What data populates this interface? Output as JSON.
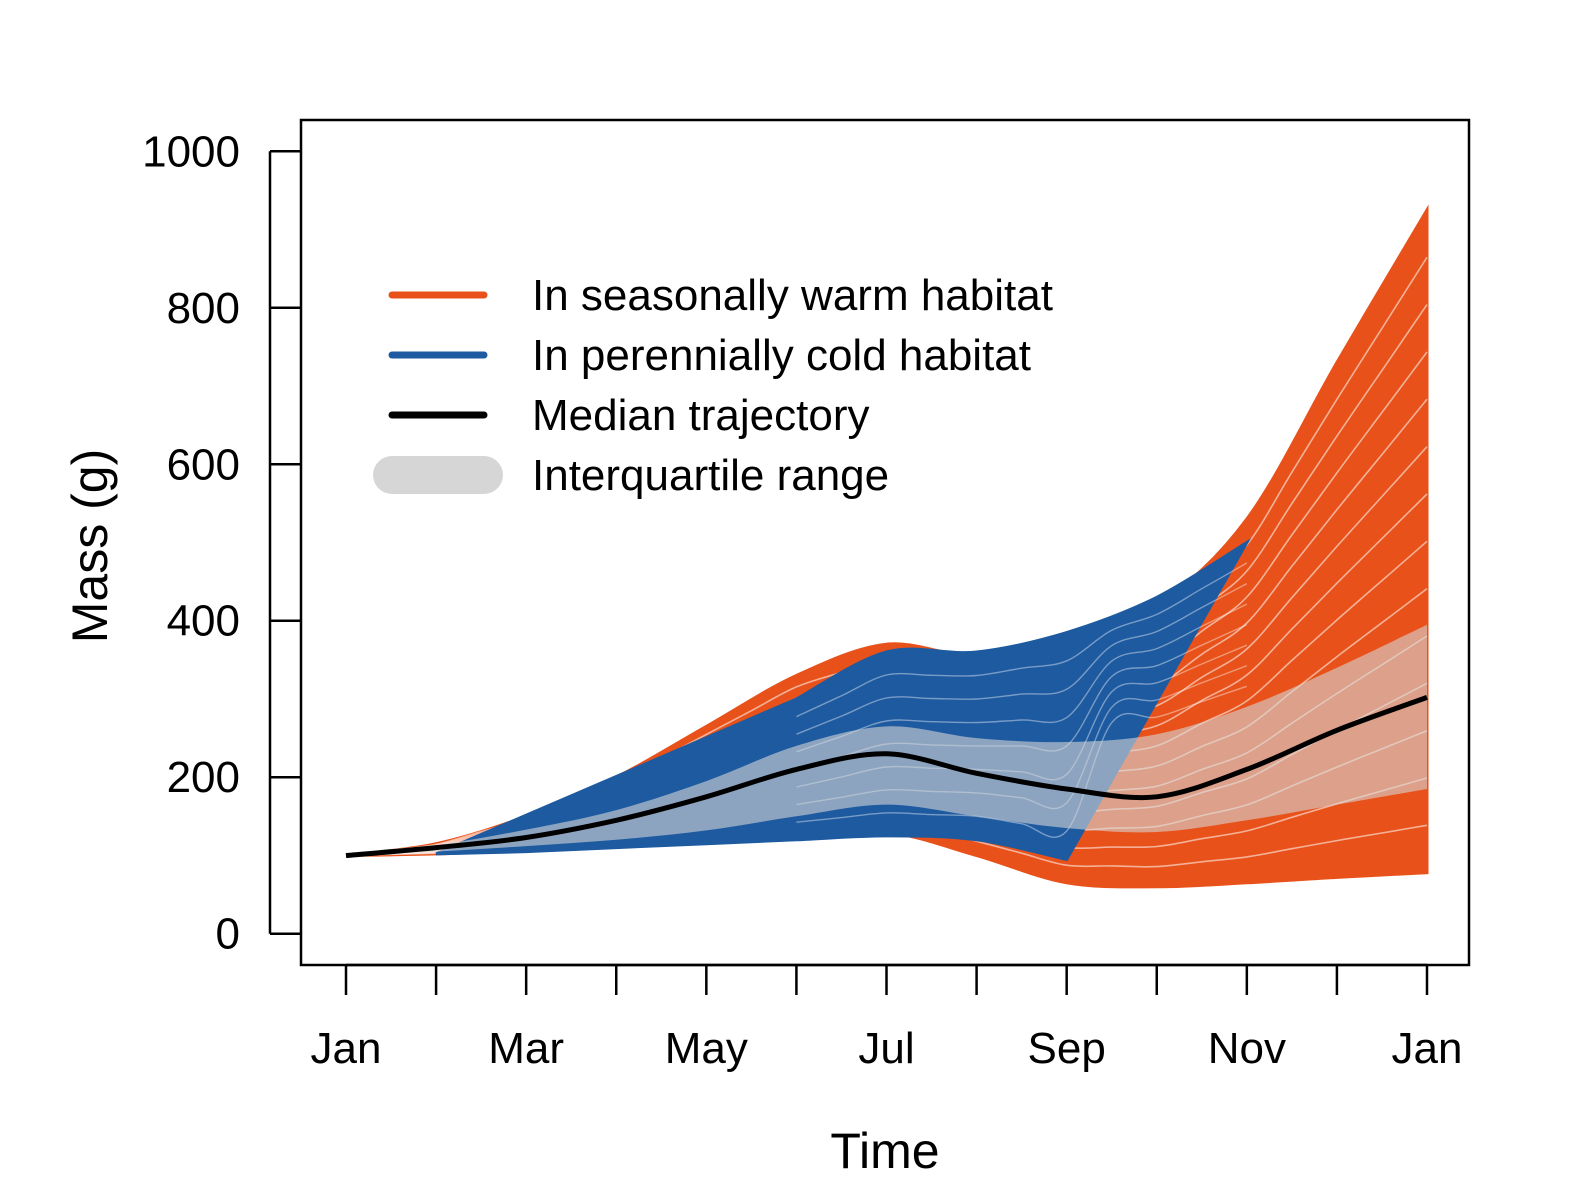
{
  "chart_data": {
    "type": "line",
    "xlabel": "Time",
    "ylabel": "Mass (g)",
    "x_ticks": [
      "Jan",
      "",
      "Mar",
      "",
      "May",
      "",
      "Jul",
      "",
      "Sep",
      "",
      "Nov",
      "",
      "Jan"
    ],
    "y_ticks": [
      0,
      200,
      400,
      600,
      800,
      1000
    ],
    "ylim": [
      -40,
      1040
    ],
    "grid": false,
    "legend_position": "top-left",
    "colors": {
      "warm": "#e8521a",
      "cold": "#1e5aa0",
      "median": "#000000",
      "iqr": "#d6d6d6"
    },
    "legend": [
      {
        "label": "In seasonally warm habitat",
        "style": "warm"
      },
      {
        "label": "In perennially cold habitat",
        "style": "cold"
      },
      {
        "label": "Median trajectory",
        "style": "median"
      },
      {
        "label": "Interquartile range",
        "style": "iqr"
      }
    ],
    "x": [
      0,
      1,
      2,
      3,
      4,
      5,
      6,
      7,
      8,
      9,
      10,
      11,
      12
    ],
    "series": [
      {
        "role": "warm_upper_envelope",
        "values": [
          100,
          115,
          150,
          200,
          265,
          330,
          370,
          355,
          380,
          420,
          530,
          730,
          925
        ]
      },
      {
        "role": "warm_lower_envelope",
        "values": [
          100,
          102,
          107,
          113,
          120,
          127,
          130,
          100,
          65,
          60,
          65,
          72,
          78
        ]
      },
      {
        "role": "cold_upper_envelope",
        "values": [
          null,
          null,
          null,
          null,
          null,
          300,
          360,
          360,
          385,
          430,
          500,
          null,
          null
        ]
      },
      {
        "role": "cold_lower_envelope",
        "values": [
          null,
          102,
          105,
          110,
          115,
          120,
          125,
          120,
          95,
          null,
          null,
          null,
          null
        ]
      },
      {
        "role": "median",
        "values": [
          100,
          110,
          123,
          145,
          175,
          210,
          230,
          205,
          185,
          175,
          210,
          260,
          302
        ]
      },
      {
        "role": "iqr_upper",
        "values": [
          100,
          113,
          133,
          158,
          195,
          240,
          265,
          250,
          245,
          255,
          290,
          340,
          395
        ]
      },
      {
        "role": "iqr_lower",
        "values": [
          100,
          105,
          112,
          120,
          132,
          150,
          165,
          150,
          135,
          130,
          145,
          165,
          185
        ]
      }
    ]
  }
}
